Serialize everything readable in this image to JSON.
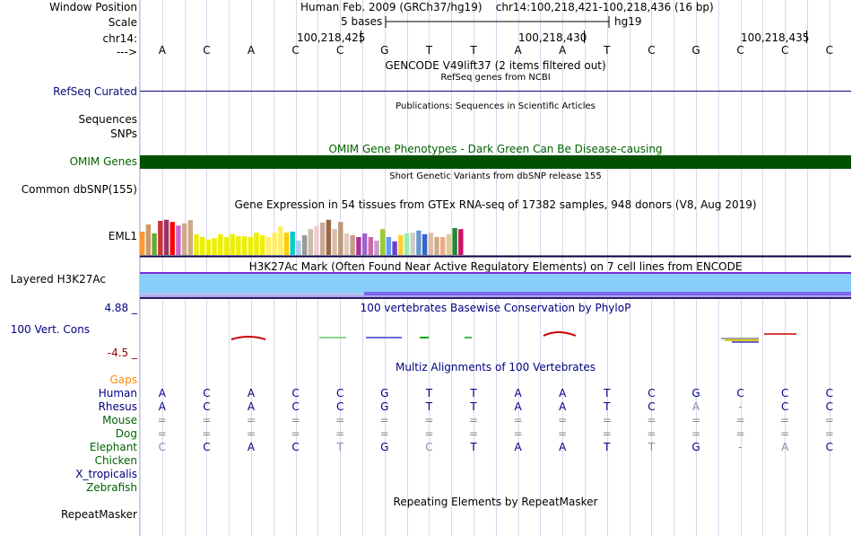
{
  "labels": {
    "window_position": "Window Position",
    "scale": "Scale",
    "chrom": "chr14:",
    "arrow": "--->",
    "refseq": "RefSeq Curated",
    "sequences": "Sequences",
    "snps": "SNPs",
    "omim": "OMIM Genes",
    "dbsnp": "Common dbSNP(155)",
    "eml1": "EML1",
    "h3k27ac": "Layered H3K27Ac",
    "cons_max": "4.88 _",
    "cons_name": "100 Vert. Cons",
    "cons_min": "-4.5 _",
    "gaps": "Gaps",
    "repeatmasker": "RepeatMasker"
  },
  "header": {
    "position": "Human Feb. 2009 (GRCh37/hg19)    chr14:100,218,421-100,218,436 (16 bp)",
    "scale_text": "5 bases",
    "assembly": "hg19"
  },
  "coords": [
    "100,218,425",
    "100,218,430",
    "100,218,435"
  ],
  "sequence": [
    "A",
    "C",
    "A",
    "C",
    "C",
    "G",
    "T",
    "T",
    "A",
    "A",
    "T",
    "C",
    "G",
    "C",
    "C",
    "C"
  ],
  "titles": {
    "gencode": "GENCODE V49lift37 (2 items filtered out)",
    "refseq": "RefSeq genes from NCBI",
    "publications": "Publications: Sequences in Scientific Articles",
    "omim": "OMIM Gene Phenotypes - Dark Green Can Be Disease-causing",
    "dbsnp": "Short Genetic Variants from dbSNP release 155",
    "gtex": "Gene Expression in 54 tissues from GTEx RNA-seq of 17382 samples, 948 donors (V8, Aug 2019)",
    "h3k27ac": "H3K27Ac Mark (Often Found Near Active Regulatory Elements) on 7 cell lines from ENCODE",
    "phylop": "100 vertebrates Basewise Conservation by PhyloP",
    "multiz": "Multiz Alignments of 100 Vertebrates",
    "repeatmasker": "Repeating Elements by RepeatMasker"
  },
  "gtex": {
    "values": [
      0.65,
      0.85,
      0.6,
      0.95,
      0.98,
      0.92,
      0.82,
      0.88,
      0.97,
      0.58,
      0.5,
      0.43,
      0.47,
      0.58,
      0.5,
      0.58,
      0.52,
      0.52,
      0.5,
      0.62,
      0.55,
      0.5,
      0.62,
      0.8,
      0.62,
      0.65,
      0.4,
      0.55,
      0.72,
      0.8,
      0.9,
      0.98,
      0.72,
      0.92,
      0.6,
      0.55,
      0.5,
      0.6,
      0.5,
      0.4,
      0.72,
      0.5,
      0.38,
      0.55,
      0.6,
      0.62,
      0.68,
      0.58,
      0.62,
      0.5,
      0.5,
      0.58,
      0.75,
      0.72
    ],
    "colors": [
      "#ff9933",
      "#cc9966",
      "#66aa33",
      "#cc3333",
      "#993366",
      "#ff0000",
      "#cc66cc",
      "#ccaa88",
      "#ccaa88",
      "#eeee00",
      "#eeee00",
      "#eeee00",
      "#eeee00",
      "#eeee00",
      "#eeee00",
      "#eeee00",
      "#eeee00",
      "#eeee00",
      "#eeee00",
      "#eeee00",
      "#eeee00",
      "#ffee66",
      "#ffee66",
      "#ffee66",
      "#ffcc00",
      "#00cccc",
      "#aaccee",
      "#999999",
      "#ccbbaa",
      "#eecccc",
      "#ccaa99",
      "#996644",
      "#ddbbaa",
      "#bb9977",
      "#ddccbb",
      "#cc9988",
      "#aa3399",
      "#9966cc",
      "#cc66aa",
      "#cc99cc",
      "#99cc33",
      "#6699ff",
      "#6644cc",
      "#ffcc33",
      "#99eeaa",
      "#cccccc",
      "#6699cc",
      "#3366cc",
      "#ddbbaa",
      "#ccaa88",
      "#eeaa88",
      "#ddcc99",
      "#228833",
      "#cc1166"
    ]
  },
  "multiz": {
    "species": [
      {
        "name": "Human",
        "color": "#000080",
        "bases": [
          "A",
          "C",
          "A",
          "C",
          "C",
          "G",
          "T",
          "T",
          "A",
          "A",
          "T",
          "C",
          "G",
          "C",
          "C",
          "C"
        ]
      },
      {
        "name": "Rhesus",
        "color": "#000080",
        "bases": [
          "A",
          "C",
          "A",
          "C",
          "C",
          "G",
          "T",
          "T",
          "A",
          "A",
          "T",
          "C",
          "A",
          "-",
          "C",
          "C"
        ]
      },
      {
        "name": "Mouse",
        "color": "#006400",
        "bases": [
          "=",
          "=",
          "=",
          "=",
          "=",
          "=",
          "=",
          "=",
          "=",
          "=",
          "=",
          "=",
          "=",
          "=",
          "=",
          "="
        ]
      },
      {
        "name": "Dog",
        "color": "#006400",
        "bases": [
          "=",
          "=",
          "=",
          "=",
          "=",
          "=",
          "=",
          "=",
          "=",
          "=",
          "=",
          "=",
          "=",
          "=",
          "=",
          "="
        ]
      },
      {
        "name": "Elephant",
        "color": "#006400",
        "bases": [
          "C",
          "C",
          "A",
          "C",
          "T",
          "G",
          "C",
          "T",
          "A",
          "A",
          "T",
          "T",
          "G",
          "-",
          "A",
          "C"
        ]
      },
      {
        "name": "Chicken",
        "color": "#006400",
        "bases": []
      },
      {
        "name": "X_tropicalis",
        "color": "#000080",
        "bases": []
      },
      {
        "name": "Zebrafish",
        "color": "#006400",
        "bases": []
      }
    ]
  },
  "colors": {
    "refseq": "#0c0c78",
    "omim_bar": "#005000",
    "omim_text": "#006400",
    "gtex_line": "#000040",
    "h3k27ac_fill": "#87cefa",
    "h3k27ac_top": "#7b2fd4",
    "cons_label": "#000080",
    "cons_min": "#8b0000",
    "gaps": "#ff8c00",
    "grid": "#d7d7ef",
    "left_border": "#e0c0c0"
  }
}
